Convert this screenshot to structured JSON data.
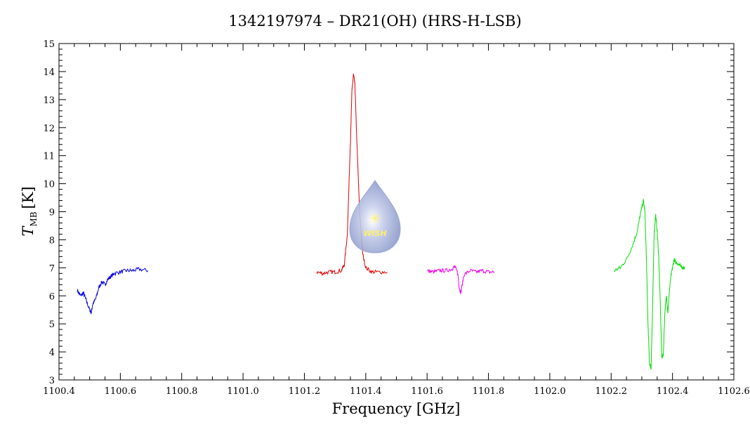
{
  "chart_data": {
    "type": "line",
    "title": "1342197974 – DR21(OH) (HRS-H-LSB)",
    "xlabel": "Frequency [GHz]",
    "ylabel_main": "T",
    "ylabel_sub": "MB",
    "ylabel_unit": "[K]",
    "xlim": [
      1100.4,
      1102.6
    ],
    "ylim": [
      3,
      15
    ],
    "xticks": [
      "1100.4",
      "1100.6",
      "1100.8",
      "1101.0",
      "1101.2",
      "1101.4",
      "1101.6",
      "1101.8",
      "1102.0",
      "1102.2",
      "1102.4",
      "1102.6"
    ],
    "yticks": [
      "3",
      "4",
      "5",
      "6",
      "7",
      "8",
      "9",
      "10",
      "11",
      "12",
      "13",
      "14",
      "15"
    ],
    "grid": false,
    "logo_text": "WISH",
    "series": [
      {
        "color": "#0000dd",
        "x": [
          1100.46,
          1100.47,
          1100.48,
          1100.49,
          1100.5,
          1100.505,
          1100.51,
          1100.52,
          1100.53,
          1100.54,
          1100.55,
          1100.56,
          1100.57,
          1100.58,
          1100.6,
          1100.62,
          1100.64,
          1100.66,
          1100.69
        ],
        "y": [
          6.2,
          6.0,
          6.1,
          5.8,
          5.5,
          5.4,
          5.7,
          5.9,
          6.3,
          6.5,
          6.4,
          6.6,
          6.7,
          6.8,
          6.85,
          6.9,
          6.9,
          6.95,
          6.9
        ]
      },
      {
        "color": "#dd0000",
        "x": [
          1101.24,
          1101.26,
          1101.28,
          1101.3,
          1101.32,
          1101.33,
          1101.34,
          1101.35,
          1101.355,
          1101.36,
          1101.365,
          1101.37,
          1101.38,
          1101.39,
          1101.4,
          1101.42,
          1101.44,
          1101.47
        ],
        "y": [
          6.85,
          6.8,
          6.85,
          6.85,
          6.9,
          7.1,
          8.2,
          11.5,
          13.3,
          13.9,
          13.5,
          11.8,
          9.0,
          7.5,
          7.0,
          6.85,
          6.85,
          6.85
        ]
      },
      {
        "color": "#ee00ee",
        "x": [
          1101.6,
          1101.62,
          1101.64,
          1101.66,
          1101.68,
          1101.69,
          1101.7,
          1101.705,
          1101.71,
          1101.72,
          1101.74,
          1101.76,
          1101.78,
          1101.8,
          1101.82
        ],
        "y": [
          6.9,
          6.85,
          6.9,
          6.9,
          6.95,
          7.05,
          6.8,
          6.3,
          6.1,
          6.75,
          6.9,
          6.85,
          6.9,
          6.85,
          6.85
        ]
      },
      {
        "color": "#00dd00",
        "x": [
          1102.21,
          1102.23,
          1102.25,
          1102.27,
          1102.285,
          1102.295,
          1102.305,
          1102.31,
          1102.315,
          1102.32,
          1102.325,
          1102.33,
          1102.335,
          1102.34,
          1102.345,
          1102.35,
          1102.355,
          1102.36,
          1102.365,
          1102.37,
          1102.375,
          1102.38,
          1102.385,
          1102.39,
          1102.395,
          1102.4,
          1102.405,
          1102.41,
          1102.42,
          1102.43,
          1102.44
        ],
        "y": [
          6.9,
          7.0,
          7.3,
          7.8,
          8.3,
          8.9,
          9.4,
          9.0,
          7.3,
          5.0,
          3.6,
          3.4,
          5.5,
          8.2,
          8.9,
          8.3,
          7.4,
          5.8,
          3.8,
          3.9,
          5.4,
          6.0,
          5.4,
          6.2,
          6.7,
          7.0,
          7.3,
          7.2,
          7.15,
          7.05,
          6.95
        ]
      }
    ]
  }
}
